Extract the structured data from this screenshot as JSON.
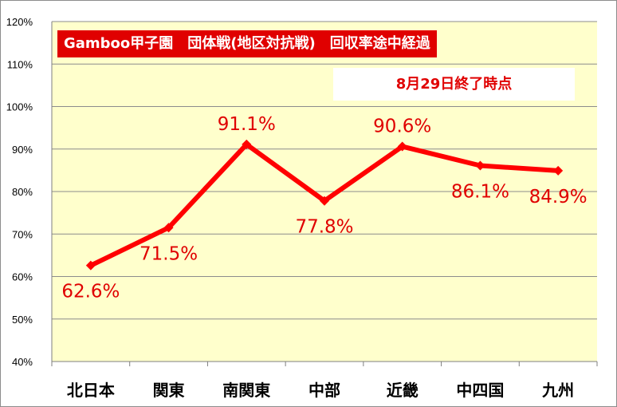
{
  "chart_data": {
    "type": "line",
    "title": "Gamboo甲子園　団体戦(地区対抗戦)　回収率途中経過",
    "subtitle": "8月29日終了時点",
    "categories": [
      "北日本",
      "関東",
      "南関東",
      "中部",
      "近畿",
      "中四国",
      "九州"
    ],
    "series": [
      {
        "values": [
          62.6,
          71.5,
          91.1,
          77.8,
          90.6,
          86.1,
          84.9
        ],
        "labels": [
          "62.6%",
          "71.5%",
          "91.1%",
          "77.8%",
          "90.6%",
          "86.1%",
          "84.9%"
        ],
        "color": "#ff0000"
      }
    ],
    "ylim": [
      40,
      120
    ],
    "yticks": [
      "40%",
      "50%",
      "60%",
      "70%",
      "80%",
      "90%",
      "100%",
      "110%",
      "120%"
    ],
    "grid": true,
    "plot_background": "#ffffcc",
    "label_color": "#e00000",
    "title_background": "#e00000"
  }
}
